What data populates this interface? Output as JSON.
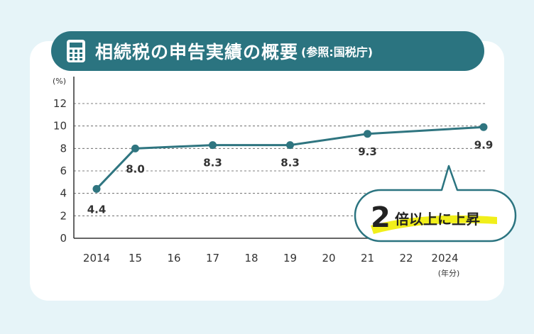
{
  "title": {
    "main": "相続税の申告実績の概要",
    "sub": "(参照:国税庁)"
  },
  "callout": {
    "number": "2",
    "text": "倍以上に上昇"
  },
  "colors": {
    "accent": "#2b7480",
    "line": "#2f7580",
    "highlight": "#f1ef1a"
  },
  "icons": {
    "title": "calculator-icon"
  },
  "chart_data": {
    "type": "line",
    "y_unit_label": "(%)",
    "x_unit_label": "(年分)",
    "x_tick_labels": [
      "2014",
      "15",
      "16",
      "17",
      "18",
      "19",
      "20",
      "21",
      "22",
      "2024"
    ],
    "y_ticks": [
      0,
      2,
      4,
      6,
      8,
      10,
      12
    ],
    "ylim": [
      0,
      12
    ],
    "grid": true,
    "series": [
      {
        "x": [
          2014,
          2015,
          2017,
          2019,
          2021,
          2024
        ],
        "values": [
          4.4,
          8.0,
          8.3,
          8.3,
          9.3,
          9.9
        ],
        "labels": [
          "4.4",
          "8.0",
          "8.3",
          "8.3",
          "9.3",
          "9.9"
        ]
      }
    ]
  }
}
